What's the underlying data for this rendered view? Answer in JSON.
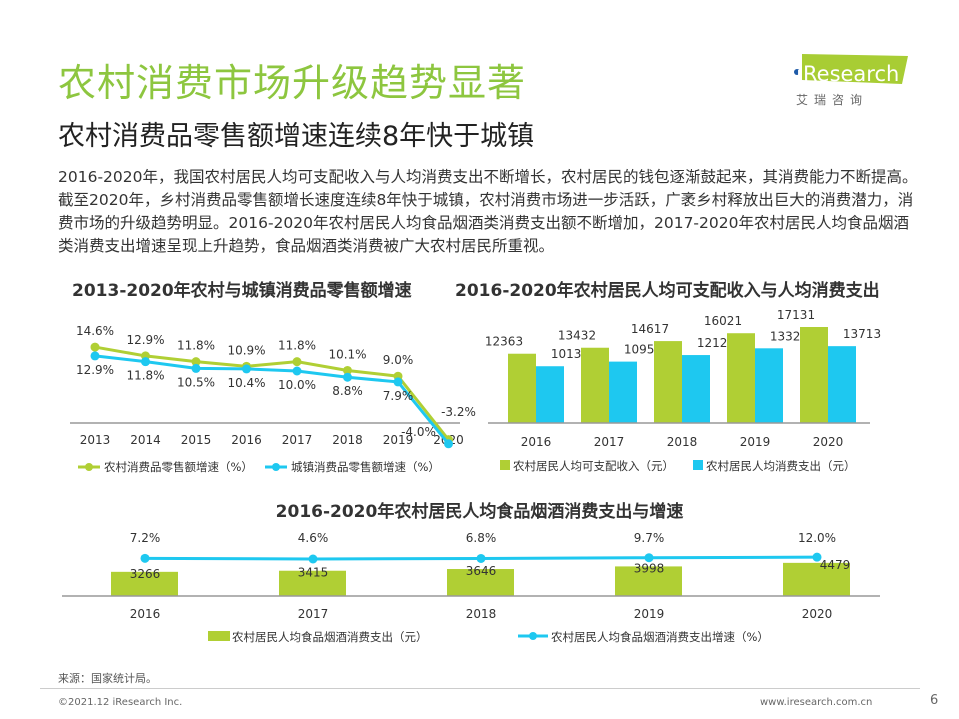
{
  "header": {
    "title": "农村消费市场升级趋势显著",
    "subtitle": "农村消费品零售额增速连续8年快于城镇",
    "body": "2016-2020年，我国农村居民人均可支配收入与人均消费支出不断增长，农村居民的钱包逐渐鼓起来，其消费能力不断提高。截至2020年，乡村消费品零售额增长速度连续8年快于城镇，农村消费市场进一步活跃，广袤乡村释放出巨大的消费潜力，消费市场的升级趋势明显。2016-2020年农村居民人均食品烟酒类消费支出额不断增加，2017-2020年农村居民人均食品烟酒类消费支出增速呈现上升趋势，食品烟酒类消费被广大农村居民所重视。"
  },
  "logo": {
    "text": "iResearch",
    "cn": "艾 瑞 咨 询"
  },
  "colors": {
    "green": "#b0cf34",
    "blue": "#1ec8f0",
    "title": "#8dc63f"
  },
  "chart_data": [
    {
      "type": "line",
      "title": "2013-2020年农村与城镇消费品零售额增速",
      "categories": [
        "2013",
        "2014",
        "2015",
        "2016",
        "2017",
        "2018",
        "2019",
        "2020"
      ],
      "series": [
        {
          "name": "农村消费品零售额增速（%）",
          "values": [
            14.6,
            12.9,
            11.8,
            10.9,
            11.8,
            10.1,
            9.0,
            -3.2
          ],
          "labels": [
            "14.6%",
            "12.9%",
            "11.8%",
            "10.9%",
            "11.8%",
            "10.1%",
            "9.0%",
            "-3.2%"
          ]
        },
        {
          "name": "城镇消费品零售额增速（%）",
          "values": [
            12.9,
            11.8,
            10.5,
            10.4,
            10.0,
            8.8,
            7.9,
            -4.0
          ],
          "labels": [
            "12.9%",
            "11.8%",
            "10.5%",
            "10.4%",
            "10.0%",
            "8.8%",
            "7.9%",
            "-4.0%"
          ]
        }
      ],
      "legend": "bottom"
    },
    {
      "type": "bar",
      "title": "2016-2020年农村居民人均可支配收入与人均消费支出",
      "categories": [
        "2016",
        "2017",
        "2018",
        "2019",
        "2020"
      ],
      "series": [
        {
          "name": "农村居民人均可支配收入（元）",
          "values": [
            12363,
            13432,
            14617,
            16021,
            17131
          ]
        },
        {
          "name": "农村居民人均消费支出（元）",
          "values": [
            10130,
            10955,
            12124,
            13328,
            13713
          ]
        }
      ],
      "legend": "bottom"
    },
    {
      "type": "bar+line",
      "title": "2016-2020年农村居民人均食品烟酒消费支出与增速",
      "categories": [
        "2016",
        "2017",
        "2018",
        "2019",
        "2020"
      ],
      "series": [
        {
          "name": "农村居民人均食品烟酒消费支出（元）",
          "type": "bar",
          "values": [
            3266,
            3415,
            3646,
            3998,
            4479
          ]
        },
        {
          "name": "农村居民人均食品烟酒消费支出增速（%）",
          "type": "line",
          "values": [
            7.2,
            4.6,
            6.8,
            9.7,
            12.0
          ],
          "labels": [
            "7.2%",
            "4.6%",
            "6.8%",
            "9.7%",
            "12.0%"
          ]
        }
      ],
      "legend": "bottom"
    }
  ],
  "footer": {
    "source": "来源：国家统计局。",
    "copyright": "©2021.12 iResearch Inc.",
    "site": "www.iresearch.com.cn",
    "page": "6"
  }
}
